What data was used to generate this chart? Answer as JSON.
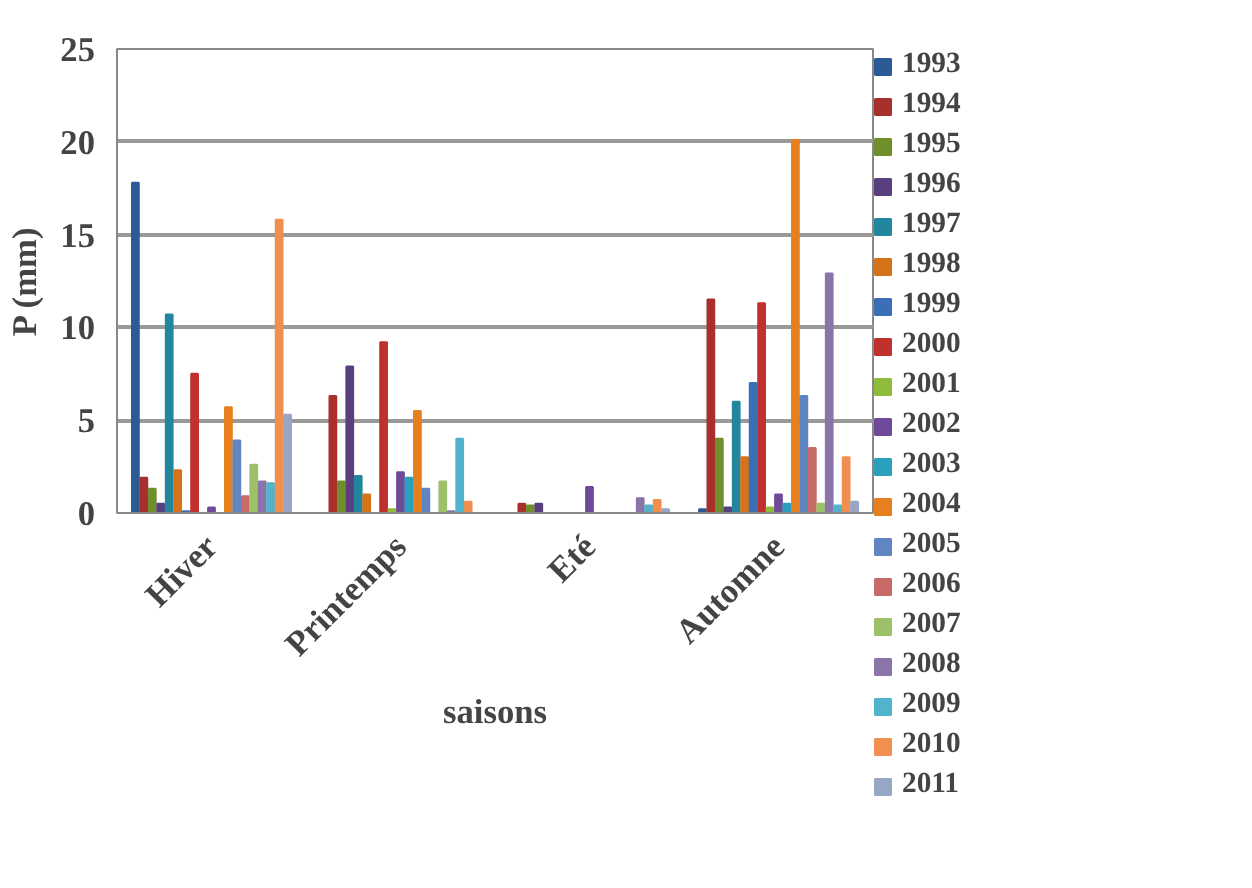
{
  "chart_data": {
    "type": "bar",
    "xlabel": "saisons",
    "ylabel": "P (mm)",
    "categories": [
      "Hiver",
      "Printemps",
      "Eté",
      "Automne"
    ],
    "ylim": [
      0,
      25
    ],
    "yticks": [
      0,
      5,
      10,
      15,
      20,
      25
    ],
    "grid": "y",
    "legend": "right",
    "series": [
      {
        "name": "1993",
        "color": "#2c5a94",
        "values": [
          17.8,
          0,
          0,
          0.2
        ]
      },
      {
        "name": "1994",
        "color": "#a8302c",
        "values": [
          1.9,
          6.3,
          0.5,
          11.5
        ]
      },
      {
        "name": "1995",
        "color": "#6f8f2c",
        "values": [
          1.3,
          1.7,
          0.4,
          4.0
        ]
      },
      {
        "name": "1996",
        "color": "#5a3f7e",
        "values": [
          0.5,
          7.9,
          0.5,
          0.3
        ]
      },
      {
        "name": "1997",
        "color": "#22879e",
        "values": [
          10.7,
          2.0,
          0,
          6.0
        ]
      },
      {
        "name": "1998",
        "color": "#d4731a",
        "values": [
          2.3,
          1.0,
          0,
          3.0
        ]
      },
      {
        "name": "1999",
        "color": "#3a6fb5",
        "values": [
          0.1,
          0,
          0,
          7.0
        ]
      },
      {
        "name": "2000",
        "color": "#c0302c",
        "values": [
          7.5,
          9.2,
          0,
          11.3
        ]
      },
      {
        "name": "2001",
        "color": "#8fbb3a",
        "values": [
          0,
          0.2,
          0,
          0.3
        ]
      },
      {
        "name": "2002",
        "color": "#6f4a98",
        "values": [
          0.3,
          2.2,
          1.4,
          1.0
        ]
      },
      {
        "name": "2003",
        "color": "#2aa0bd",
        "values": [
          0,
          1.9,
          0,
          0.5
        ]
      },
      {
        "name": "2004",
        "color": "#e87f1e",
        "values": [
          5.7,
          5.5,
          0,
          20.1
        ]
      },
      {
        "name": "2005",
        "color": "#5f86c0",
        "values": [
          3.9,
          1.3,
          0,
          6.3
        ]
      },
      {
        "name": "2006",
        "color": "#c86a68",
        "values": [
          0.9,
          0,
          0,
          3.5
        ]
      },
      {
        "name": "2007",
        "color": "#9fc06a",
        "values": [
          2.6,
          1.7,
          0,
          0.5
        ]
      },
      {
        "name": "2008",
        "color": "#8a74aa",
        "values": [
          1.7,
          0.1,
          0.8,
          12.9
        ]
      },
      {
        "name": "2009",
        "color": "#52b3cc",
        "values": [
          1.6,
          4.0,
          0.4,
          0.4
        ]
      },
      {
        "name": "2010",
        "color": "#f08f50",
        "values": [
          15.8,
          0.6,
          0.7,
          3.0
        ]
      },
      {
        "name": "2011",
        "color": "#96a6c4",
        "values": [
          5.3,
          0,
          0.2,
          0.6
        ]
      }
    ]
  }
}
